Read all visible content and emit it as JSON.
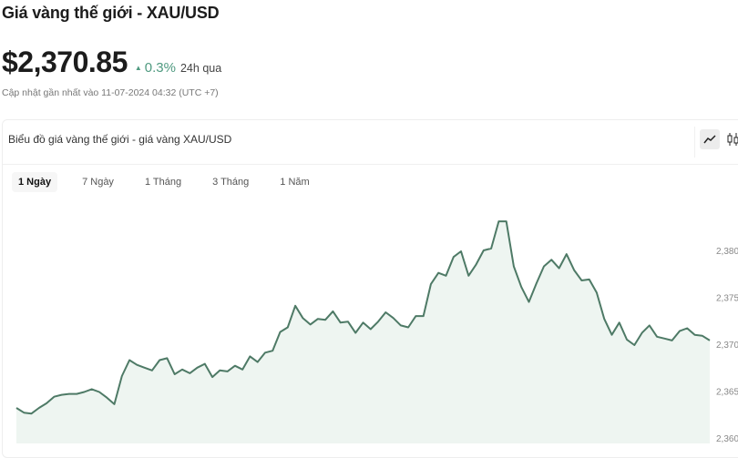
{
  "header": {
    "title": "Giá vàng thế giới - XAU/USD",
    "price": "$2,370.85",
    "change_icon": "triangle-up-icon",
    "change": "0.3%",
    "change_period": "24h qua",
    "updated": "Cập nhật gần nhất vào 11-07-2024 04:32 (UTC +7)",
    "positive_color": "#4f9a80"
  },
  "card": {
    "title": "Biểu đồ giá vàng thế giới - giá vàng XAU/USD",
    "chart_types": [
      {
        "icon": "line-chart-icon",
        "active": true
      },
      {
        "icon": "candlestick-chart-icon",
        "active": false
      }
    ],
    "tabs": [
      {
        "label": "1 Ngày",
        "active": true
      },
      {
        "label": "7 Ngày",
        "active": false
      },
      {
        "label": "1 Tháng",
        "active": false
      },
      {
        "label": "3 Tháng",
        "active": false
      },
      {
        "label": "1 Năm",
        "active": false
      }
    ]
  },
  "chart_data": {
    "type": "area",
    "title": "",
    "xlabel": "",
    "ylabel": "",
    "ylim": [
      2359.3,
      2386
    ],
    "y_ticks": [
      {
        "value": 2380,
        "label": "2,380"
      },
      {
        "value": 2375,
        "label": "2,375"
      },
      {
        "value": 2370,
        "label": "2,370"
      },
      {
        "value": 2365,
        "label": "2,365"
      },
      {
        "value": 2360,
        "label": "2,360"
      }
    ],
    "y_axis_position": "right",
    "grid": false,
    "line_color": "#4e7a66",
    "fill_color": "#eef5f1",
    "values": [
      2363.2,
      2362.7,
      2362.6,
      2363.2,
      2363.7,
      2364.4,
      2364.6,
      2364.7,
      2364.7,
      2364.9,
      2365.2,
      2364.9,
      2364.3,
      2363.6,
      2366.6,
      2368.3,
      2367.8,
      2367.5,
      2367.2,
      2368.3,
      2368.5,
      2366.8,
      2367.3,
      2366.9,
      2367.5,
      2367.9,
      2366.5,
      2367.2,
      2367.1,
      2367.7,
      2367.3,
      2368.7,
      2368.1,
      2369.1,
      2369.3,
      2371.3,
      2371.8,
      2374.1,
      2372.8,
      2372.1,
      2372.7,
      2372.6,
      2373.5,
      2372.3,
      2372.4,
      2371.2,
      2372.3,
      2371.6,
      2372.4,
      2373.4,
      2372.8,
      2372.0,
      2371.8,
      2373.0,
      2373.0,
      2376.4,
      2377.6,
      2377.3,
      2379.3,
      2379.9,
      2377.3,
      2378.5,
      2380.0,
      2380.2,
      2383.1,
      2383.1,
      2378.3,
      2376.1,
      2374.5,
      2376.5,
      2378.3,
      2379.0,
      2378.1,
      2379.6,
      2377.9,
      2376.8,
      2376.9,
      2375.5,
      2372.7,
      2371.0,
      2372.3,
      2370.5,
      2369.9,
      2371.2,
      2372.0,
      2370.8,
      2370.6,
      2370.4,
      2371.4,
      2371.7,
      2371.0,
      2370.9,
      2370.4
    ]
  }
}
